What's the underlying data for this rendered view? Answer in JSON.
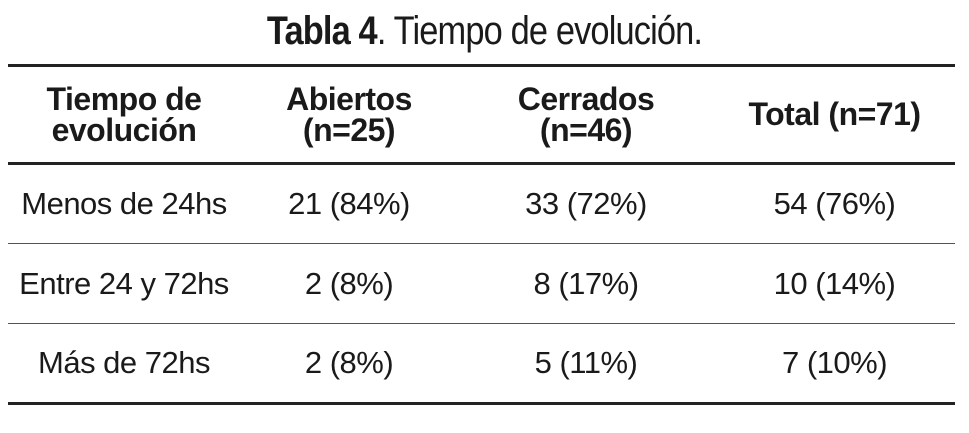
{
  "caption": {
    "label": "Tabla 4",
    "text": ". Tiempo de evolución."
  },
  "table": {
    "headers": [
      [
        "Tiempo de",
        "evolución"
      ],
      [
        "Abiertos",
        "(n=25)"
      ],
      [
        "Cerrados",
        "(n=46)"
      ],
      [
        "Total (n=71)"
      ]
    ],
    "rows": [
      [
        "Menos de 24hs",
        "21 (84%)",
        "33 (72%)",
        "54 (76%)"
      ],
      [
        "Entre 24 y 72hs",
        "2 (8%)",
        "8 (17%)",
        "10 (14%)"
      ],
      [
        "Más de 72hs",
        "2 (8%)",
        "5 (11%)",
        "7 (10%)"
      ]
    ]
  }
}
